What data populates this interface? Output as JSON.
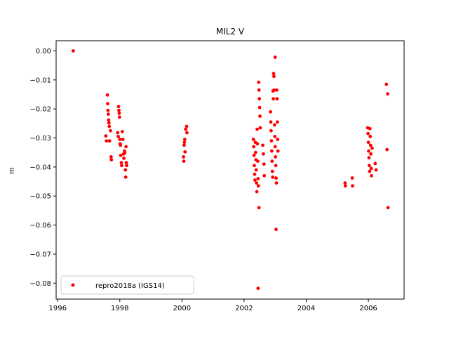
{
  "chart_data": {
    "type": "scatter",
    "title": "MIL2 V",
    "xlabel": "",
    "ylabel": "m",
    "xlim": [
      1995.95,
      2007.15
    ],
    "ylim": [
      -0.0855,
      0.0035
    ],
    "xticks": [
      1996,
      1998,
      2000,
      2002,
      2004,
      2006
    ],
    "yticks": [
      0.0,
      -0.01,
      -0.02,
      -0.03,
      -0.04,
      -0.05,
      -0.06,
      -0.07,
      -0.08
    ],
    "ytick_labels": [
      "0.00",
      "−0.01",
      "−0.02",
      "−0.03",
      "−0.04",
      "−0.05",
      "−0.06",
      "−0.07",
      "−0.08"
    ],
    "grid": false,
    "legend_position": "lower-left",
    "series": [
      {
        "name": "repro2018a (IGS14)",
        "color": "#ff0000",
        "marker": "circle",
        "points": [
          [
            1996.5,
            0.0
          ],
          [
            1997.55,
            -0.0293
          ],
          [
            1997.57,
            -0.031
          ],
          [
            1997.6,
            -0.0152
          ],
          [
            1997.61,
            -0.0182
          ],
          [
            1997.62,
            -0.0205
          ],
          [
            1997.63,
            -0.0218
          ],
          [
            1997.64,
            -0.0238
          ],
          [
            1997.65,
            -0.0248
          ],
          [
            1997.66,
            -0.026
          ],
          [
            1997.67,
            -0.031
          ],
          [
            1997.7,
            -0.0275
          ],
          [
            1997.72,
            -0.0365
          ],
          [
            1997.73,
            -0.0375
          ],
          [
            1997.93,
            -0.0282
          ],
          [
            1997.95,
            -0.0295
          ],
          [
            1997.96,
            -0.0192
          ],
          [
            1997.97,
            -0.0205
          ],
          [
            1997.98,
            -0.0215
          ],
          [
            1997.99,
            -0.0228
          ],
          [
            1998.0,
            -0.0305
          ],
          [
            1998.01,
            -0.032
          ],
          [
            1998.02,
            -0.0325
          ],
          [
            1998.03,
            -0.036
          ],
          [
            1998.05,
            -0.0385
          ],
          [
            1998.06,
            -0.0395
          ],
          [
            1998.08,
            -0.0278
          ],
          [
            1998.1,
            -0.0305
          ],
          [
            1998.12,
            -0.0355
          ],
          [
            1998.13,
            -0.037
          ],
          [
            1998.15,
            -0.0345
          ],
          [
            1998.16,
            -0.0352
          ],
          [
            1998.18,
            -0.041
          ],
          [
            1998.19,
            -0.0435
          ],
          [
            1998.2,
            -0.033
          ],
          [
            1998.21,
            -0.0385
          ],
          [
            1998.22,
            -0.0395
          ],
          [
            2000.05,
            -0.0365
          ],
          [
            2000.06,
            -0.038
          ],
          [
            2000.07,
            -0.0325
          ],
          [
            2000.08,
            -0.0315
          ],
          [
            2000.09,
            -0.0305
          ],
          [
            2000.1,
            -0.0348
          ],
          [
            2000.12,
            -0.027
          ],
          [
            2000.15,
            -0.026
          ],
          [
            2000.16,
            -0.0282
          ],
          [
            2002.3,
            -0.0305
          ],
          [
            2002.31,
            -0.033
          ],
          [
            2002.32,
            -0.036
          ],
          [
            2002.33,
            -0.0395
          ],
          [
            2002.34,
            -0.0425
          ],
          [
            2002.35,
            -0.0445
          ],
          [
            2002.36,
            -0.0315
          ],
          [
            2002.37,
            -0.035
          ],
          [
            2002.38,
            -0.0375
          ],
          [
            2002.39,
            -0.041
          ],
          [
            2002.4,
            -0.0455
          ],
          [
            2002.41,
            -0.0485
          ],
          [
            2002.42,
            -0.027
          ],
          [
            2002.43,
            -0.032
          ],
          [
            2002.44,
            -0.038
          ],
          [
            2002.45,
            -0.044
          ],
          [
            2002.46,
            -0.0465
          ],
          [
            2002.47,
            -0.0108
          ],
          [
            2002.48,
            -0.0135
          ],
          [
            2002.49,
            -0.0165
          ],
          [
            2002.5,
            -0.0195
          ],
          [
            2002.51,
            -0.0225
          ],
          [
            2002.52,
            -0.0265
          ],
          [
            2002.48,
            -0.054
          ],
          [
            2002.45,
            -0.0818
          ],
          [
            2002.6,
            -0.0325
          ],
          [
            2002.62,
            -0.0355
          ],
          [
            2002.64,
            -0.039
          ],
          [
            2002.65,
            -0.043
          ],
          [
            2002.85,
            -0.021
          ],
          [
            2002.86,
            -0.0245
          ],
          [
            2002.87,
            -0.0275
          ],
          [
            2002.88,
            -0.031
          ],
          [
            2002.89,
            -0.0345
          ],
          [
            2002.9,
            -0.038
          ],
          [
            2002.91,
            -0.0415
          ],
          [
            2002.92,
            -0.0435
          ],
          [
            2002.93,
            -0.0138
          ],
          [
            2002.94,
            -0.0165
          ],
          [
            2002.95,
            -0.0078
          ],
          [
            2002.96,
            -0.0088
          ],
          [
            2002.97,
            -0.0135
          ],
          [
            2002.98,
            -0.0255
          ],
          [
            2002.99,
            -0.0295
          ],
          [
            2003.0,
            -0.033
          ],
          [
            2003.01,
            -0.0365
          ],
          [
            2003.02,
            -0.0395
          ],
          [
            2003.03,
            -0.0438
          ],
          [
            2003.04,
            -0.0455
          ],
          [
            2003.05,
            -0.0135
          ],
          [
            2003.06,
            -0.0165
          ],
          [
            2003.07,
            -0.0245
          ],
          [
            2003.08,
            -0.0305
          ],
          [
            2003.09,
            -0.0345
          ],
          [
            2003.0,
            -0.0022
          ],
          [
            2003.03,
            -0.0615
          ],
          [
            2005.25,
            -0.0455
          ],
          [
            2005.26,
            -0.0465
          ],
          [
            2005.48,
            -0.0438
          ],
          [
            2005.49,
            -0.0465
          ],
          [
            2005.98,
            -0.0265
          ],
          [
            2005.99,
            -0.0285
          ],
          [
            2006.0,
            -0.0315
          ],
          [
            2006.01,
            -0.0345
          ],
          [
            2006.02,
            -0.0368
          ],
          [
            2006.03,
            -0.0395
          ],
          [
            2006.04,
            -0.0415
          ],
          [
            2006.05,
            -0.0268
          ],
          [
            2006.06,
            -0.0295
          ],
          [
            2006.07,
            -0.0325
          ],
          [
            2006.08,
            -0.0355
          ],
          [
            2006.09,
            -0.0405
          ],
          [
            2006.1,
            -0.043
          ],
          [
            2006.12,
            -0.0335
          ],
          [
            2006.22,
            -0.0388
          ],
          [
            2006.25,
            -0.041
          ],
          [
            2006.58,
            -0.0115
          ],
          [
            2006.6,
            -0.034
          ],
          [
            2006.62,
            -0.0148
          ],
          [
            2006.63,
            -0.054
          ]
        ]
      }
    ]
  }
}
